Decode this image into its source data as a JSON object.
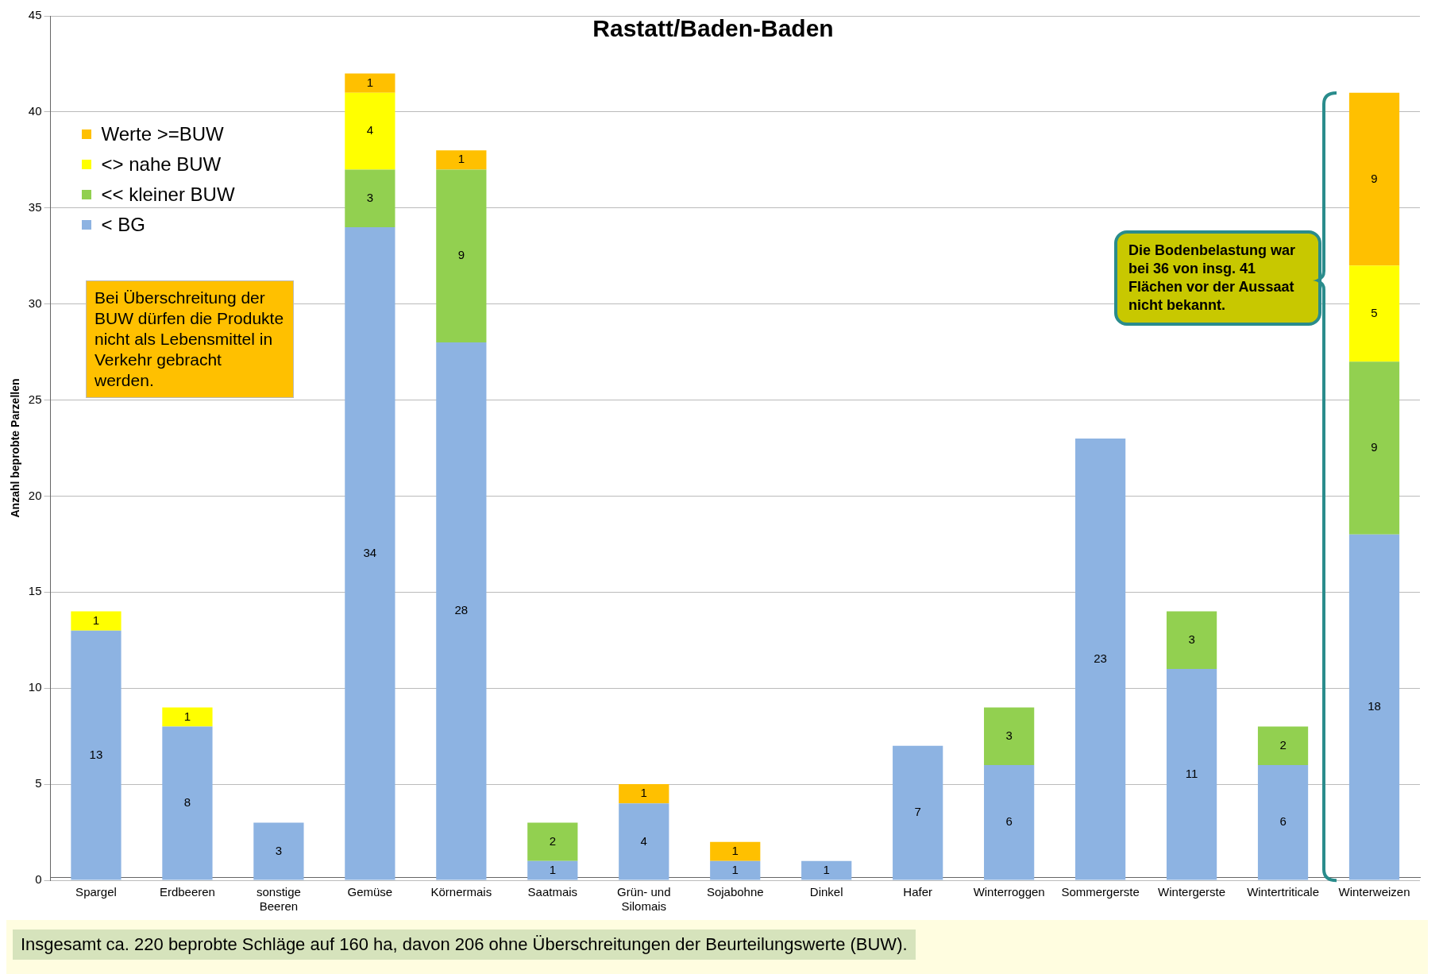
{
  "chart_data": {
    "type": "bar",
    "title": "Rastatt/Baden-Baden",
    "ylabel": "Anzahl beprobte Parzellen",
    "categories": [
      "Spargel",
      "Erdbeeren",
      "sonstige Beeren",
      "Gemüse",
      "Körnermais",
      "Saatmais",
      "Grün- und Silomais",
      "Sojabohne",
      "Dinkel",
      "Hafer",
      "Winterroggen",
      "Sommergerste",
      "Wintergerste",
      "Wintertriticale",
      "Winterweizen"
    ],
    "stacked": true,
    "ylim": [
      0,
      45
    ],
    "yticks": [
      0,
      5,
      10,
      15,
      20,
      25,
      30,
      35,
      40,
      45
    ],
    "grid": "y",
    "legend": "top left",
    "data_labels": true,
    "series": [
      {
        "name": "< BG",
        "color": "#8db3e2",
        "values": [
          13,
          8,
          3,
          34,
          28,
          1,
          4,
          1,
          1,
          7,
          6,
          23,
          11,
          6,
          18
        ]
      },
      {
        "name": "<< kleiner BUW",
        "color": "#92d050",
        "values": [
          null,
          null,
          null,
          3,
          9,
          2,
          null,
          null,
          null,
          null,
          3,
          null,
          3,
          2,
          9
        ]
      },
      {
        "name": "<> nahe BUW",
        "color": "#ffff00",
        "values": [
          1,
          1,
          null,
          4,
          null,
          null,
          null,
          null,
          null,
          null,
          null,
          null,
          null,
          null,
          5
        ]
      },
      {
        "name": "Werte >=BUW",
        "color": "#ffc000",
        "values": [
          null,
          null,
          null,
          1,
          1,
          null,
          1,
          1,
          null,
          null,
          null,
          null,
          null,
          null,
          9
        ]
      }
    ],
    "annotations": [
      "Bei Überschreitung der BUW dürfen die Produkte nicht als Lebensmittel in Verkehr gebracht werden.",
      "Die Bodenbelastung war bei 36 von insg. 41 Flächen vor der Aussaat nicht bekannt.",
      "Insgesamt ca. 220 beprobte Schläge auf 160 ha,  davon 206 ohne Überschreitungen der Beurteilungswerte (BUW)."
    ]
  }
}
